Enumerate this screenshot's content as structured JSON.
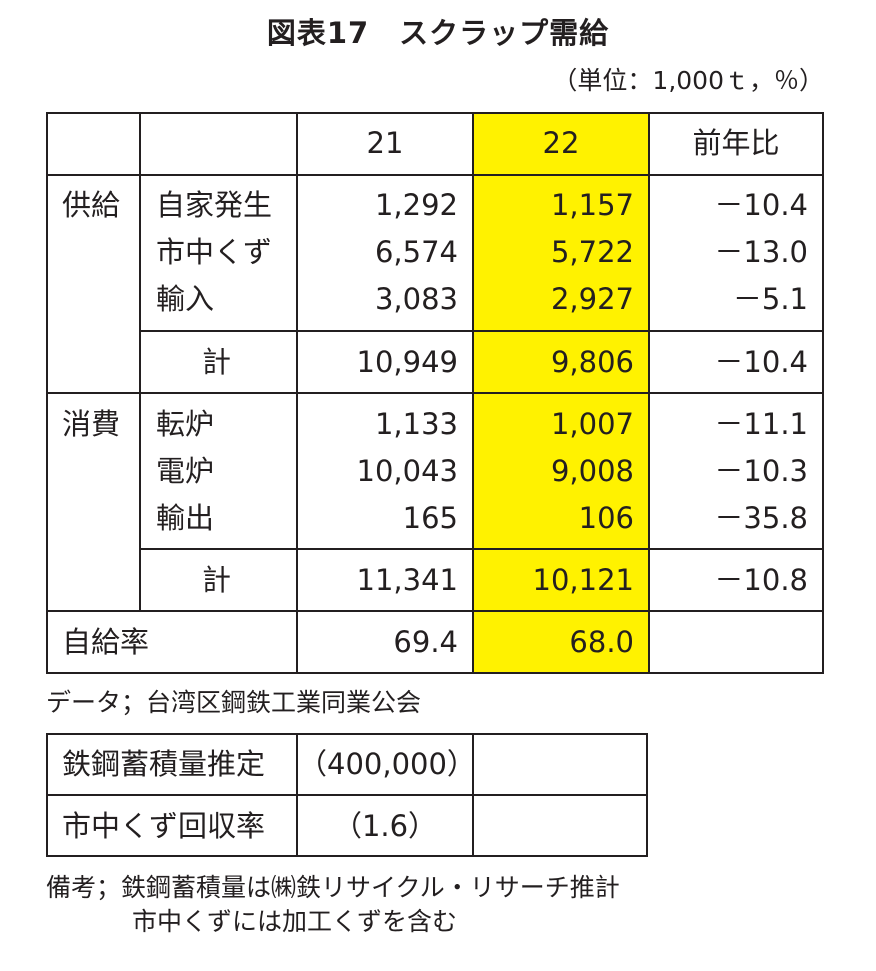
{
  "title": "図表17　スクラップ需給",
  "unit": "（単位：1,000ｔ，％）",
  "header": {
    "col_21": "21",
    "col_22": "22",
    "col_yoy": "前年比"
  },
  "supply": {
    "group_label": "供給",
    "rows": [
      {
        "label": "自家発生",
        "v21": "1,292",
        "v22": "1,157",
        "yoy": "－10.4"
      },
      {
        "label": "市中くず",
        "v21": "6,574",
        "v22": "5,722",
        "yoy": "－13.0"
      },
      {
        "label": "輸入",
        "v21": "3,083",
        "v22": "2,927",
        "yoy": "－5.1"
      }
    ],
    "total": {
      "label": "計",
      "v21": "10,949",
      "v22": "9,806",
      "yoy": "－10.4"
    }
  },
  "consumption": {
    "group_label": "消費",
    "rows": [
      {
        "label": "転炉",
        "v21": "1,133",
        "v22": "1,007",
        "yoy": "－11.1"
      },
      {
        "label": "電炉",
        "v21": "10,043",
        "v22": "9,008",
        "yoy": "－10.3"
      },
      {
        "label": "輸出",
        "v21": "165",
        "v22": "106",
        "yoy": "－35.8"
      }
    ],
    "total": {
      "label": "計",
      "v21": "11,341",
      "v22": "10,121",
      "yoy": "－10.8"
    }
  },
  "self_sufficiency": {
    "label": "自給率",
    "v21": "69.4",
    "v22": "68.0",
    "yoy": ""
  },
  "source": "データ；台湾区鋼鉄工業同業公会",
  "sub_table": {
    "rows": [
      {
        "label": "鉄鋼蓄積量推定",
        "value": "（400,000）",
        "extra": ""
      },
      {
        "label": "市中くず回収率",
        "value": "（1.6）",
        "extra": ""
      }
    ]
  },
  "notes": {
    "line1": "備考；鉄鋼蓄積量は㈱鉄リサイクル・リサーチ推計",
    "line2": "市中くずには加工くずを含む"
  },
  "colors": {
    "highlight": "#fff200",
    "line": "#231f20"
  }
}
